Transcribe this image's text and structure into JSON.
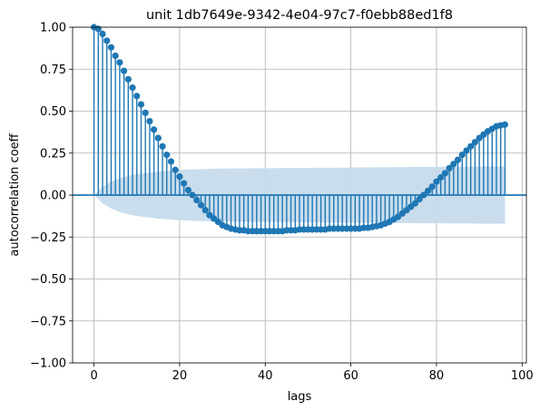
{
  "chart_data": {
    "type": "stem",
    "title": "unit 1db7649e-9342-4e04-97c7-f0ebb88ed1f8",
    "xlabel": "lags",
    "ylabel": "autocorrelation coeff",
    "xlim": [
      -5,
      101
    ],
    "ylim": [
      -1.0,
      1.0
    ],
    "xticks": [
      0,
      20,
      40,
      60,
      80,
      100
    ],
    "yticks": [
      -1.0,
      -0.75,
      -0.5,
      -0.25,
      0.0,
      0.25,
      0.5,
      0.75,
      1.0
    ],
    "xtick_labels": [
      "0",
      "20",
      "40",
      "60",
      "80",
      "100"
    ],
    "ytick_labels": [
      "−1.00",
      "−0.75",
      "−0.50",
      "−0.25",
      "0.00",
      "0.25",
      "0.50",
      "0.75",
      "1.00"
    ],
    "grid": true,
    "colors": {
      "stem": "#1f77b4",
      "confidence_band": "#c6dbec",
      "grid": "#b0b0b0"
    },
    "x": [
      0,
      1,
      2,
      3,
      4,
      5,
      6,
      7,
      8,
      9,
      10,
      11,
      12,
      13,
      14,
      15,
      16,
      17,
      18,
      19,
      20,
      21,
      22,
      23,
      24,
      25,
      26,
      27,
      28,
      29,
      30,
      31,
      32,
      33,
      34,
      35,
      36,
      37,
      38,
      39,
      40,
      41,
      42,
      43,
      44,
      45,
      46,
      47,
      48,
      49,
      50,
      51,
      52,
      53,
      54,
      55,
      56,
      57,
      58,
      59,
      60,
      61,
      62,
      63,
      64,
      65,
      66,
      67,
      68,
      69,
      70,
      71,
      72,
      73,
      74,
      75,
      76,
      77,
      78,
      79,
      80,
      81,
      82,
      83,
      84,
      85,
      86,
      87,
      88,
      89,
      90,
      91,
      92,
      93,
      94,
      95,
      96
    ],
    "values": [
      1.0,
      0.99,
      0.96,
      0.92,
      0.88,
      0.83,
      0.79,
      0.74,
      0.69,
      0.64,
      0.59,
      0.54,
      0.49,
      0.44,
      0.39,
      0.34,
      0.29,
      0.24,
      0.2,
      0.15,
      0.11,
      0.07,
      0.03,
      0.0,
      -0.03,
      -0.06,
      -0.09,
      -0.12,
      -0.14,
      -0.16,
      -0.18,
      -0.19,
      -0.2,
      -0.205,
      -0.21,
      -0.21,
      -0.215,
      -0.215,
      -0.215,
      -0.215,
      -0.215,
      -0.215,
      -0.215,
      -0.215,
      -0.215,
      -0.21,
      -0.21,
      -0.21,
      -0.205,
      -0.205,
      -0.205,
      -0.205,
      -0.205,
      -0.205,
      -0.205,
      -0.2,
      -0.2,
      -0.2,
      -0.2,
      -0.2,
      -0.2,
      -0.2,
      -0.2,
      -0.195,
      -0.195,
      -0.19,
      -0.185,
      -0.18,
      -0.17,
      -0.16,
      -0.145,
      -0.13,
      -0.11,
      -0.09,
      -0.07,
      -0.05,
      -0.025,
      0.0,
      0.025,
      0.05,
      0.08,
      0.105,
      0.13,
      0.16,
      0.185,
      0.21,
      0.24,
      0.265,
      0.29,
      0.315,
      0.34,
      0.36,
      0.38,
      0.395,
      0.41,
      0.415,
      0.42
    ],
    "confidence_band": {
      "x": [
        0,
        2,
        4,
        6,
        8,
        10,
        15,
        20,
        25,
        30,
        40,
        50,
        60,
        70,
        80,
        90,
        96
      ],
      "upper": [
        0.0,
        0.05,
        0.08,
        0.1,
        0.115,
        0.125,
        0.14,
        0.15,
        0.155,
        0.158,
        0.16,
        0.162,
        0.164,
        0.166,
        0.168,
        0.17,
        0.17
      ],
      "lower": [
        0.0,
        -0.05,
        -0.08,
        -0.1,
        -0.115,
        -0.125,
        -0.14,
        -0.15,
        -0.155,
        -0.158,
        -0.16,
        -0.162,
        -0.164,
        -0.166,
        -0.168,
        -0.17,
        -0.17
      ]
    }
  }
}
